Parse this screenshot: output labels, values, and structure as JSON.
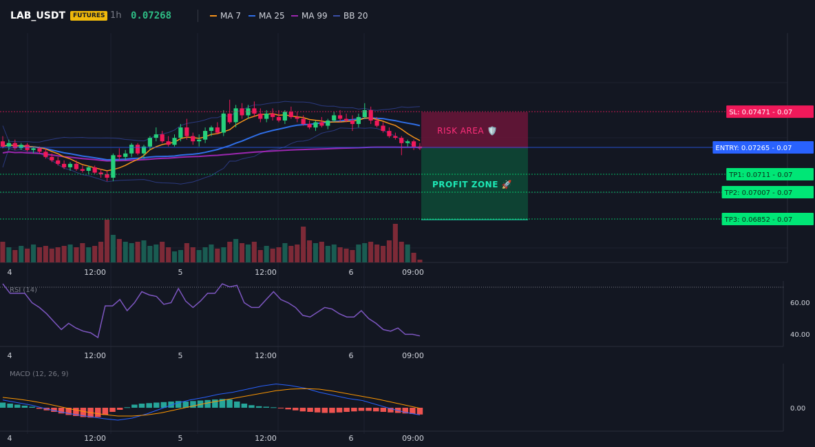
{
  "header": {
    "symbol": "LAB_USDT",
    "badge": "FUTURES",
    "interval": "1h",
    "price": "0.07268",
    "legend": [
      {
        "label": "MA 7",
        "color": "#f7931a"
      },
      {
        "label": "MA 25",
        "color": "#2f6fe8"
      },
      {
        "label": "MA 99",
        "color": "#9c27b0"
      },
      {
        "label": "BB 20",
        "color": "#3a4ea8"
      }
    ]
  },
  "colors": {
    "up": "#26d07c",
    "down": "#f0195a",
    "vol_up": "#1a5c52",
    "vol_down": "#7d2a37",
    "macd_hist_up": "#26a69a",
    "macd_hist_down": "#ef5350",
    "rsi": "#7e57c2",
    "macd_line": "#2962ff",
    "signal_line": "#ff9800"
  },
  "levels": [
    {
      "name": "sl",
      "label": "SL: 0.07471 - 0.07",
      "value": 0.07471,
      "color": "#f0195a",
      "text_color": "#ffffff"
    },
    {
      "name": "entry",
      "label": "ENTRY: 0.07265 - 0.07",
      "value": 0.07265,
      "color": "#2962ff",
      "text_color": "#ffffff"
    },
    {
      "name": "tp1",
      "label": "TP1: 0.0711 - 0.07",
      "value": 0.0711,
      "color": "#00e676",
      "text_color": "#0b2e1a"
    },
    {
      "name": "tp2",
      "label": "TP2: 0.07007 - 0.07",
      "value": 0.07007,
      "color": "#00e676",
      "text_color": "#0b2e1a"
    },
    {
      "name": "tp3",
      "label": "TP3: 0.06852 - 0.07",
      "value": 0.06852,
      "color": "#00e676",
      "text_color": "#0b2e1a"
    }
  ],
  "zones": {
    "risk_label": "RISK AREA 🛡️",
    "profit_label": "PROFIT ZONE 🚀"
  },
  "x_ticks": [
    "4",
    "12:00",
    "5",
    "12:00",
    "6",
    "09:00"
  ],
  "rsi": {
    "label": "RSI (14)",
    "ticks": [
      "60.00",
      "40.00"
    ]
  },
  "macd": {
    "label": "MACD (12, 26, 9)",
    "ticks": [
      "0.00"
    ]
  },
  "chart_data": [
    {
      "type": "candlestick",
      "title": "LAB_USDT 1h",
      "x_ticks": [
        "4",
        "12:00",
        "5",
        "12:00",
        "6",
        "09:00"
      ],
      "ylim": [
        0.068,
        0.077
      ],
      "candles": [
        [
          0.073,
          0.0733,
          0.0726,
          0.0727
        ],
        [
          0.0727,
          0.0731,
          0.0725,
          0.0729
        ],
        [
          0.0729,
          0.0731,
          0.0725,
          0.0726
        ],
        [
          0.0726,
          0.0729,
          0.0725,
          0.0728
        ],
        [
          0.0728,
          0.0729,
          0.0724,
          0.0725
        ],
        [
          0.0725,
          0.0727,
          0.0723,
          0.0726
        ],
        [
          0.0726,
          0.0727,
          0.0723,
          0.0724
        ],
        [
          0.0724,
          0.0726,
          0.072,
          0.0721
        ],
        [
          0.0721,
          0.0723,
          0.0718,
          0.0719
        ],
        [
          0.0719,
          0.0721,
          0.0716,
          0.0717
        ],
        [
          0.0717,
          0.0719,
          0.0714,
          0.0715
        ],
        [
          0.0715,
          0.0718,
          0.0713,
          0.0717
        ],
        [
          0.0717,
          0.0719,
          0.0713,
          0.0714
        ],
        [
          0.0714,
          0.0716,
          0.0712,
          0.0713
        ],
        [
          0.0713,
          0.0716,
          0.0711,
          0.0715
        ],
        [
          0.0715,
          0.0716,
          0.0711,
          0.0712
        ],
        [
          0.0712,
          0.0714,
          0.0709,
          0.0711
        ],
        [
          0.0711,
          0.0713,
          0.0707,
          0.0709
        ],
        [
          0.0709,
          0.0723,
          0.0707,
          0.0722
        ],
        [
          0.0722,
          0.0726,
          0.0719,
          0.0721
        ],
        [
          0.0721,
          0.0725,
          0.0719,
          0.0723
        ],
        [
          0.0723,
          0.0729,
          0.0721,
          0.0728
        ],
        [
          0.0728,
          0.0729,
          0.0722,
          0.0723
        ],
        [
          0.0723,
          0.0728,
          0.072,
          0.0727
        ],
        [
          0.0727,
          0.0733,
          0.0725,
          0.0732
        ],
        [
          0.0732,
          0.0738,
          0.073,
          0.0734
        ],
        [
          0.0734,
          0.0736,
          0.0729,
          0.073
        ],
        [
          0.073,
          0.0733,
          0.0727,
          0.0728
        ],
        [
          0.0728,
          0.0734,
          0.0727,
          0.0732
        ],
        [
          0.0732,
          0.074,
          0.073,
          0.0738
        ],
        [
          0.0738,
          0.0743,
          0.0731,
          0.0733
        ],
        [
          0.0733,
          0.0735,
          0.0728,
          0.073
        ],
        [
          0.073,
          0.0734,
          0.0727,
          0.0731
        ],
        [
          0.0731,
          0.0738,
          0.0729,
          0.0736
        ],
        [
          0.0736,
          0.0739,
          0.0733,
          0.0738
        ],
        [
          0.0738,
          0.0741,
          0.0734,
          0.0735
        ],
        [
          0.0735,
          0.0748,
          0.0733,
          0.0746
        ],
        [
          0.0746,
          0.0754,
          0.074,
          0.0741
        ],
        [
          0.0741,
          0.0751,
          0.0738,
          0.0749
        ],
        [
          0.0749,
          0.0752,
          0.0743,
          0.0745
        ],
        [
          0.0745,
          0.0751,
          0.0743,
          0.0749
        ],
        [
          0.0749,
          0.0753,
          0.0744,
          0.0746
        ],
        [
          0.0746,
          0.0749,
          0.0741,
          0.0743
        ],
        [
          0.0743,
          0.0748,
          0.0741,
          0.0746
        ],
        [
          0.0746,
          0.0749,
          0.0742,
          0.0744
        ],
        [
          0.0744,
          0.0748,
          0.0741,
          0.0742
        ],
        [
          0.0742,
          0.0748,
          0.074,
          0.0747
        ],
        [
          0.0747,
          0.075,
          0.0743,
          0.0744
        ],
        [
          0.0744,
          0.0747,
          0.0741,
          0.0743
        ],
        [
          0.0743,
          0.0745,
          0.0739,
          0.074
        ],
        [
          0.074,
          0.0742,
          0.0737,
          0.0738
        ],
        [
          0.0738,
          0.0742,
          0.0736,
          0.0741
        ],
        [
          0.0741,
          0.0744,
          0.0738,
          0.0739
        ],
        [
          0.0739,
          0.0743,
          0.0737,
          0.0742
        ],
        [
          0.0742,
          0.0747,
          0.0741,
          0.0745
        ],
        [
          0.0745,
          0.0748,
          0.0741,
          0.0743
        ],
        [
          0.0743,
          0.0746,
          0.0741,
          0.0742
        ],
        [
          0.0742,
          0.0745,
          0.0736,
          0.074
        ],
        [
          0.074,
          0.0746,
          0.0738,
          0.0744
        ],
        [
          0.0744,
          0.0752,
          0.0743,
          0.0748
        ],
        [
          0.0748,
          0.075,
          0.074,
          0.0742
        ],
        [
          0.0742,
          0.0744,
          0.0738,
          0.0739
        ],
        [
          0.0739,
          0.0741,
          0.0735,
          0.0736
        ],
        [
          0.0736,
          0.0738,
          0.0732,
          0.0733
        ],
        [
          0.0733,
          0.0735,
          0.0731,
          0.0732
        ],
        [
          0.0732,
          0.0733,
          0.0722,
          0.0729
        ],
        [
          0.0729,
          0.0731,
          0.0727,
          0.073
        ],
        [
          0.073,
          0.0731,
          0.0725,
          0.0727
        ],
        [
          0.0727,
          0.0729,
          0.0725,
          0.0726
        ]
      ],
      "volume": [
        0.3,
        0.22,
        0.18,
        0.24,
        0.2,
        0.26,
        0.22,
        0.24,
        0.2,
        0.22,
        0.24,
        0.26,
        0.22,
        0.28,
        0.22,
        0.24,
        0.3,
        0.62,
        0.4,
        0.34,
        0.3,
        0.28,
        0.3,
        0.32,
        0.24,
        0.26,
        0.3,
        0.22,
        0.16,
        0.18,
        0.28,
        0.22,
        0.18,
        0.22,
        0.26,
        0.2,
        0.22,
        0.3,
        0.34,
        0.28,
        0.26,
        0.3,
        0.18,
        0.24,
        0.2,
        0.22,
        0.28,
        0.24,
        0.26,
        0.52,
        0.32,
        0.28,
        0.3,
        0.24,
        0.26,
        0.22,
        0.2,
        0.18,
        0.26,
        0.28,
        0.3,
        0.26,
        0.24,
        0.32,
        0.56,
        0.3,
        0.26,
        0.14,
        0.04
      ]
    },
    {
      "type": "line",
      "title": "RSI (14)",
      "ylim": [
        35,
        75
      ],
      "values": [
        72,
        66,
        66,
        66,
        60,
        57,
        53,
        48,
        43,
        47,
        44,
        42,
        41,
        38,
        58,
        58,
        62,
        55,
        60,
        67,
        65,
        64,
        59,
        60,
        69,
        61,
        57,
        61,
        66,
        66,
        72,
        70,
        71,
        60,
        57,
        57,
        62,
        67,
        62,
        60,
        57,
        52,
        51,
        54,
        57,
        56,
        53,
        51,
        51,
        55,
        50,
        47,
        43,
        42,
        44,
        40,
        40,
        39
      ]
    },
    {
      "type": "line",
      "title": "MACD (12, 26, 9)",
      "ylim": [
        -0.0006,
        0.0006
      ],
      "series": [
        {
          "name": "MACD",
          "values": [
            0.00015,
            0.0001,
            5e-05,
            -2e-05,
            -8e-05,
            -0.00013,
            -0.00017,
            -0.00021,
            -0.00024,
            -0.0002,
            -0.00012,
            -2e-05,
            8e-05,
            0.00015,
            0.0002,
            0.00026,
            0.0003,
            0.00036,
            0.00042,
            0.00046,
            0.00043,
            0.00038,
            0.0003,
            0.00024,
            0.00018,
            0.00014,
            6e-05,
            -2e-05,
            -9e-05,
            -0.00014
          ]
        },
        {
          "name": "Signal",
          "values": [
            0.0002,
            0.00017,
            0.00013,
            8e-05,
            2e-05,
            -4e-05,
            -9e-05,
            -0.00013,
            -0.00016,
            -0.00016,
            -0.00014,
            -0.0001,
            -4e-05,
            2e-05,
            8e-05,
            0.00013,
            0.00018,
            0.00023,
            0.00028,
            0.00033,
            0.00036,
            0.00037,
            0.00036,
            0.00032,
            0.00027,
            0.00022,
            0.00017,
            0.00011,
            5e-05,
            -1e-05
          ]
        },
        {
          "name": "Histogram",
          "values": [
            0.0001,
            8e-05,
            6e-05,
            4e-05,
            2e-05,
            -2e-05,
            -5e-05,
            -8e-05,
            -0.00011,
            -0.00014,
            -0.00016,
            -0.00018,
            -0.00019,
            -0.00018,
            -0.00014,
            -8e-05,
            -4e-05,
            1e-05,
            6e-05,
            8e-05,
            9e-05,
            0.0001,
            0.00011,
            0.00012,
            0.00013,
            0.00012,
            0.00013,
            0.00014,
            0.00015,
            0.00016,
            0.00017,
            0.00016,
            0.00012,
            8e-05,
            5e-05,
            3e-05,
            2e-05,
            1e-05,
            -1e-05,
            -3e-05,
            -5e-05,
            -7e-05,
            -8e-05,
            -9e-05,
            -0.0001,
            -0.0001,
            -9e-05,
            -8e-05,
            -7e-05,
            -6e-05,
            -6e-05,
            -7e-05,
            -8e-05,
            -9e-05,
            -0.0001,
            -0.00011,
            -0.00012,
            -0.00013
          ]
        }
      ]
    }
  ]
}
